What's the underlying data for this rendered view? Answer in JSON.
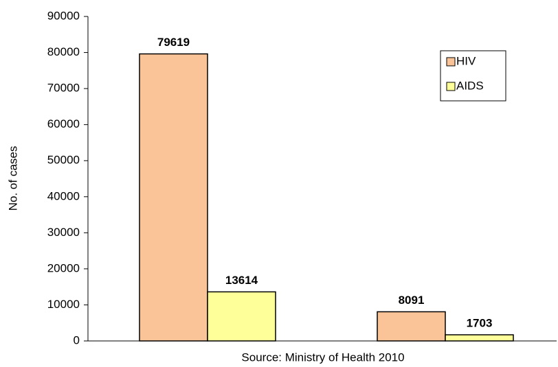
{
  "chart_data": {
    "type": "bar",
    "y_label": "No. of cases",
    "x_label": "Source: Ministry of Health 2010",
    "categories": [
      null,
      null
    ],
    "series": [
      {
        "name": "HIV",
        "color": "#fac498",
        "values": [
          79619,
          8091
        ]
      },
      {
        "name": "AIDS",
        "color": "#ffff99",
        "values": [
          13614,
          1703
        ]
      }
    ],
    "ylim": [
      0,
      90000
    ],
    "yticks": [
      0,
      10000,
      20000,
      30000,
      40000,
      50000,
      60000,
      70000,
      80000,
      90000
    ],
    "grid": false,
    "legend": "upper right"
  }
}
